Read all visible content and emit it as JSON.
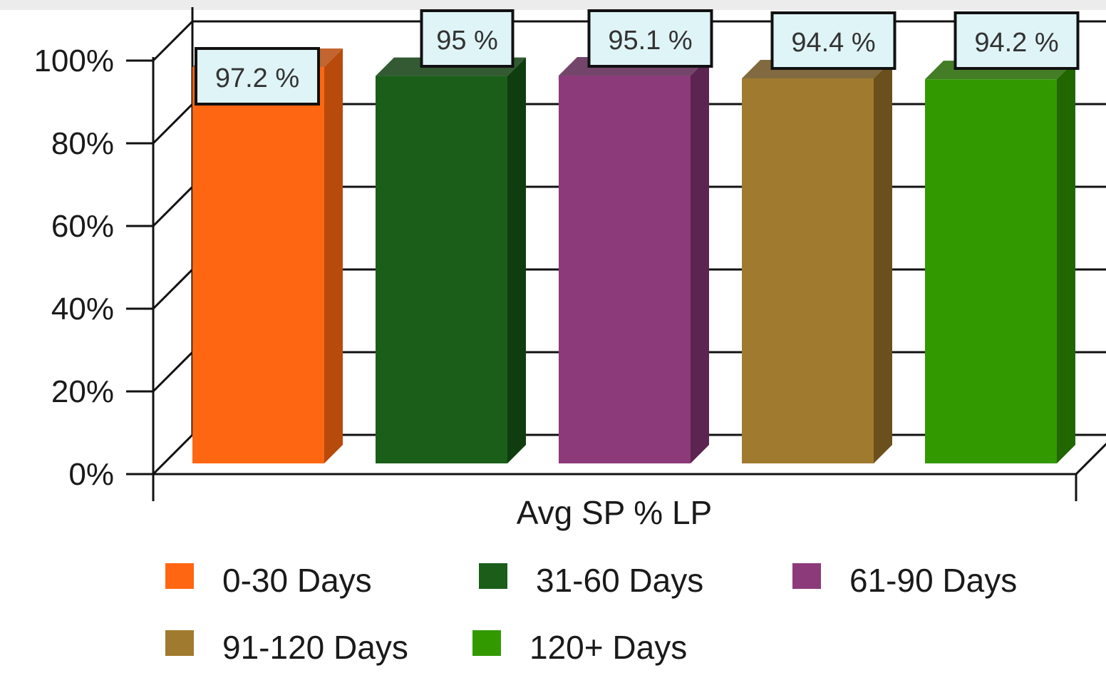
{
  "chart_data": {
    "type": "bar",
    "style": "3d",
    "title": "",
    "xlabel": "Avg SP % LP",
    "ylabel": "",
    "ylim": [
      0,
      100
    ],
    "yticks": [
      "0%",
      "20%",
      "40%",
      "60%",
      "80%",
      "100%"
    ],
    "ytick_values": [
      0,
      20,
      40,
      60,
      80,
      100
    ],
    "grid": true,
    "legend_position": "bottom",
    "categories": [
      "Avg SP % LP"
    ],
    "series": [
      {
        "name": "0-30 Days",
        "values": [
          97.2
        ],
        "label": "97.2 %",
        "color": "#ff6611",
        "side_color": "#b84a0c"
      },
      {
        "name": "31-60 Days",
        "values": [
          95.0
        ],
        "label": "95 %",
        "color": "#1a5e1a",
        "side_color": "#0f3d0f"
      },
      {
        "name": "61-90 Days",
        "values": [
          95.1
        ],
        "label": "95.1 %",
        "color": "#8c3a7a",
        "side_color": "#5c2450"
      },
      {
        "name": "91-120 Days",
        "values": [
          94.4
        ],
        "label": "94.4 %",
        "color": "#a07a2e",
        "side_color": "#6b501d"
      },
      {
        "name": "120+ Days",
        "values": [
          94.2
        ],
        "label": "94.2 %",
        "color": "#339900",
        "side_color": "#226600"
      }
    ],
    "label_box_fill": "#dff4f7",
    "label_box_stroke": "#111111"
  }
}
